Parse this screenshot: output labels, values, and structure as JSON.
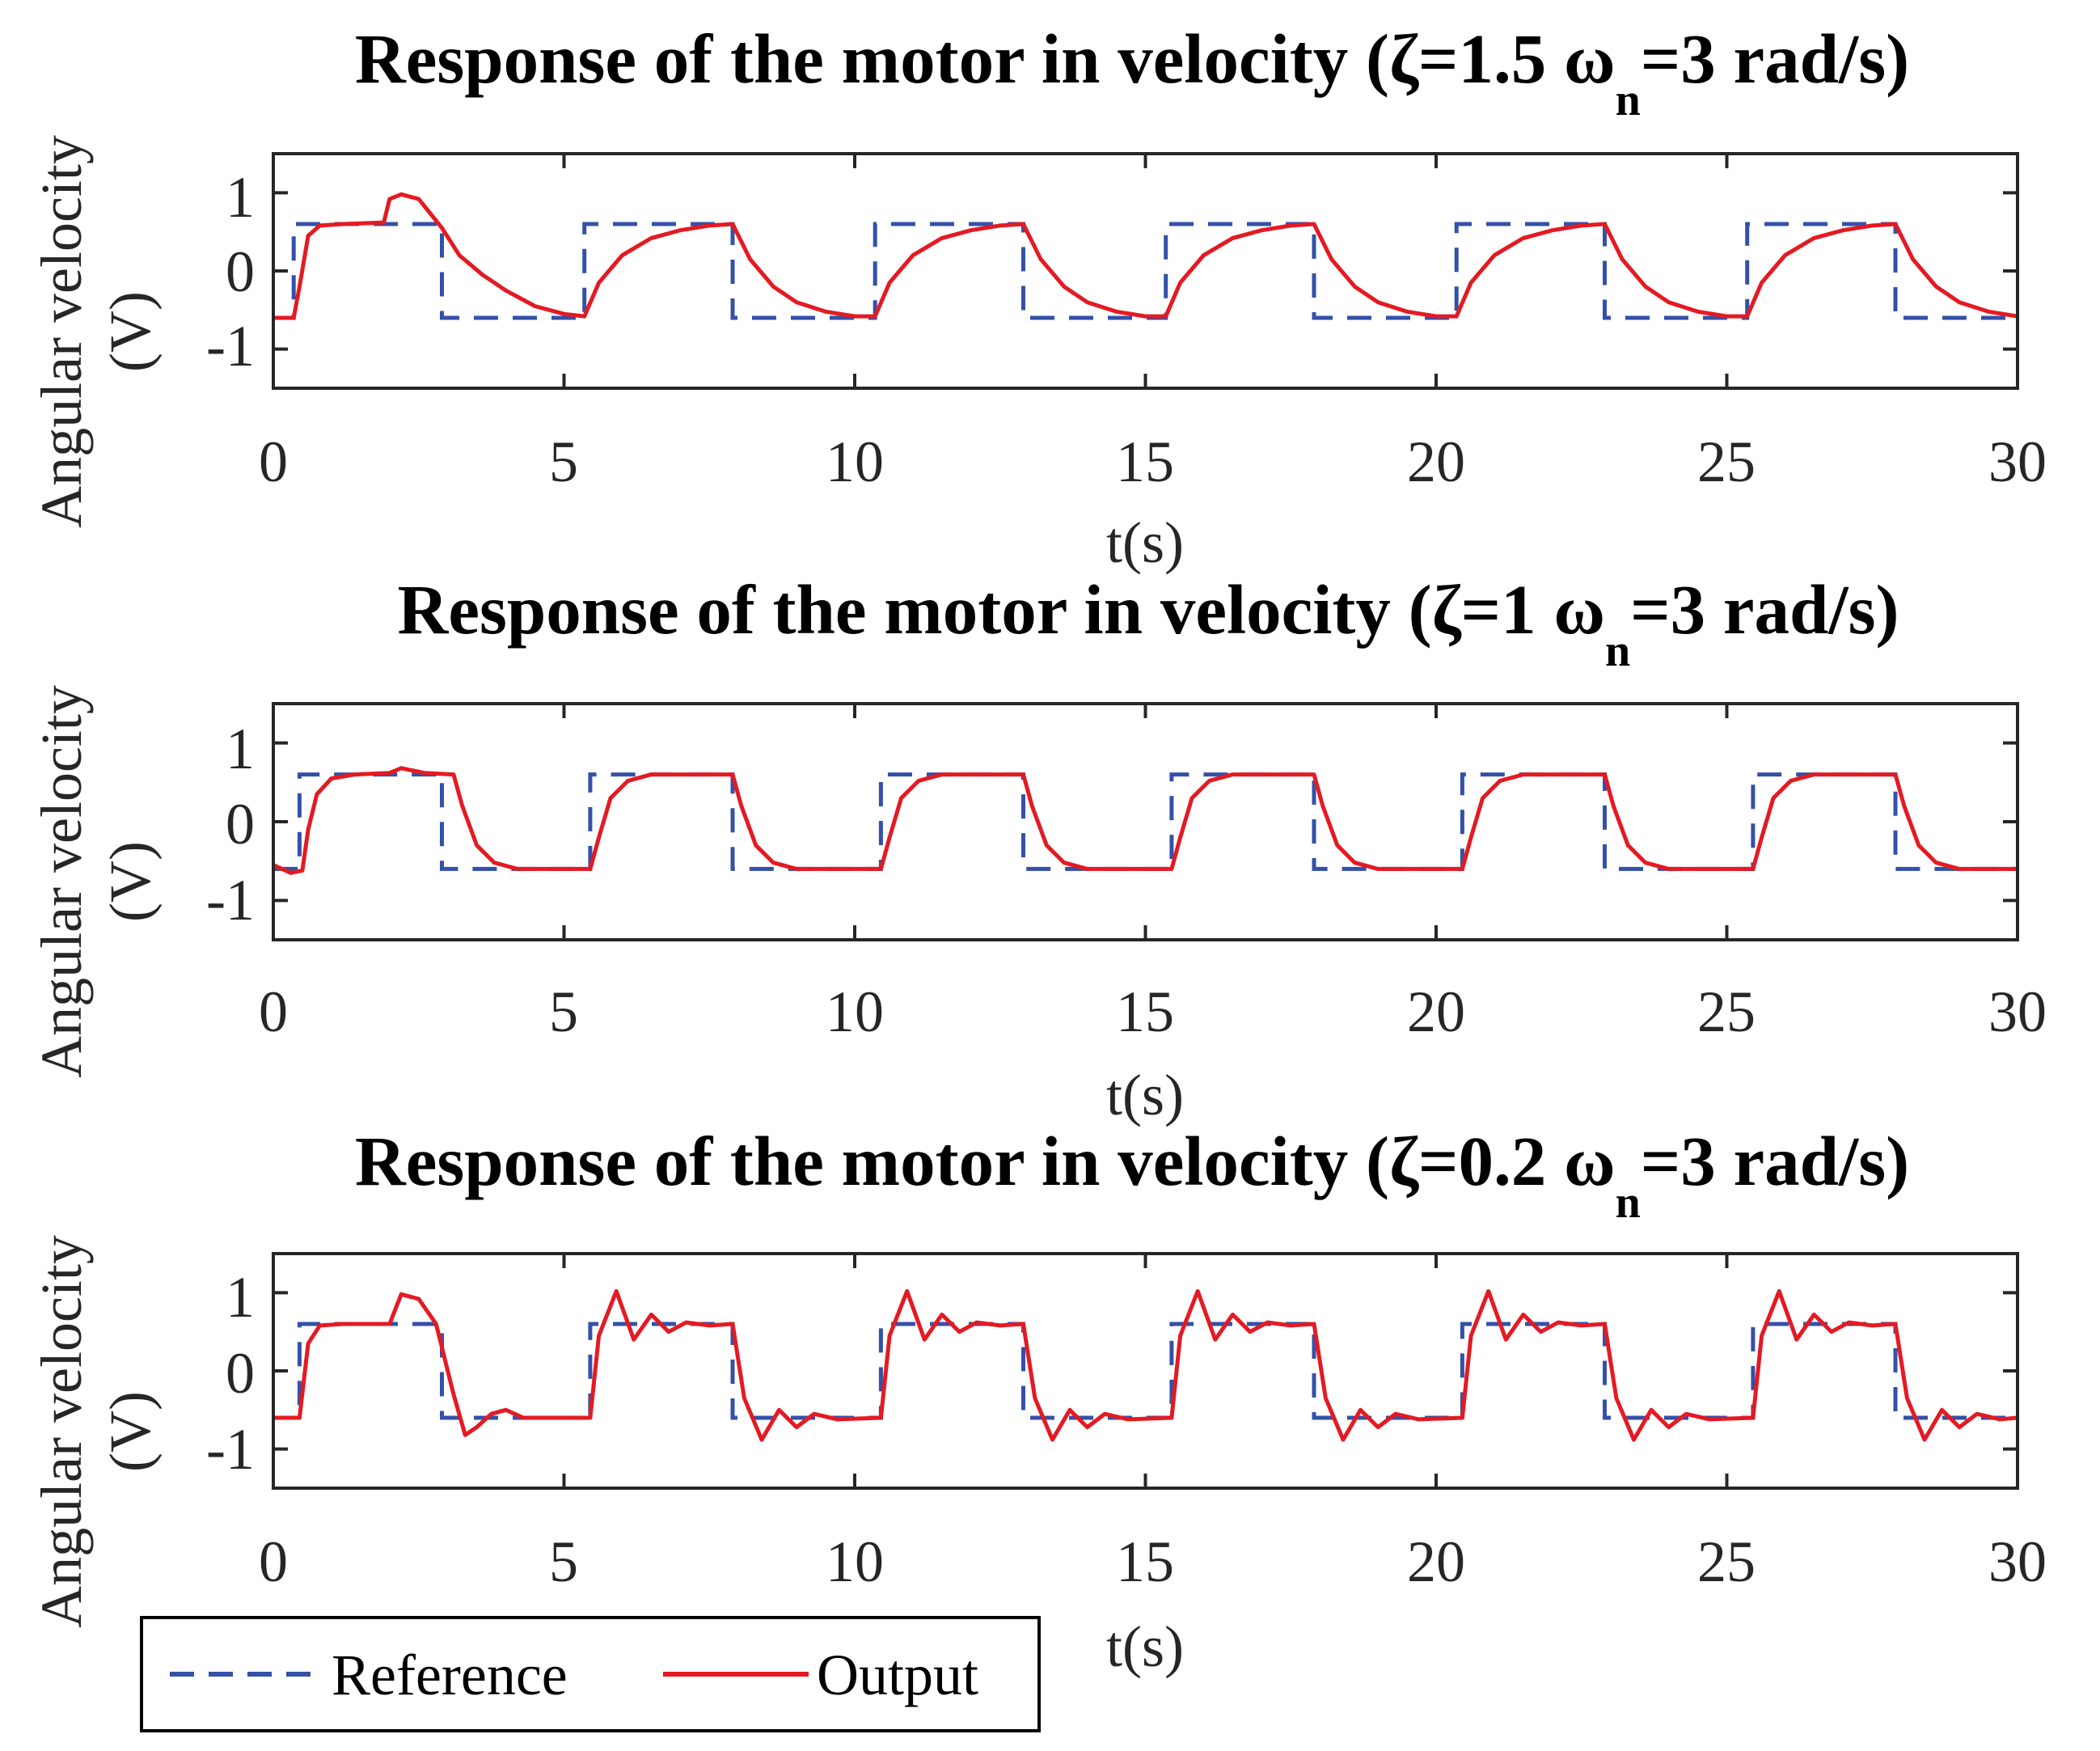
{
  "chart_data": [
    {
      "type": "line",
      "title": "Response of the motor in velocity (ζ=1.5 ωn=3 rad/s)",
      "title_parts": {
        "main": "Response of the motor in velocity (ζ=1.5 ω",
        "sub": "n",
        "tail": "=3 rad/s)"
      },
      "zeta": 1.5,
      "omega_n": 3,
      "xlabel": "t(s)",
      "ylabel": "Angular velocity (V)",
      "ylabel_lines": [
        "Angular velocity",
        "(V)"
      ],
      "xlim": [
        0,
        30
      ],
      "ylim": [
        -1.5,
        1.5
      ],
      "xticks": [
        0,
        5,
        10,
        15,
        20,
        25,
        30
      ],
      "yticks": [
        -1,
        0,
        1
      ],
      "ytick_labels": [
        "-1",
        "0",
        "1"
      ],
      "series": [
        {
          "name": "Reference",
          "style": "dashed",
          "color": "#3451a8",
          "x": [
            0,
            0.35,
            0.35,
            2.9,
            2.9,
            5.35,
            5.35,
            7.9,
            7.9,
            10.35,
            10.35,
            12.9,
            12.9,
            15.35,
            15.35,
            17.9,
            17.9,
            20.35,
            20.35,
            22.9,
            22.9,
            25.35,
            25.35,
            27.9,
            27.9,
            30
          ],
          "y": [
            -0.6,
            -0.6,
            0.6,
            0.6,
            -0.6,
            -0.6,
            0.6,
            0.6,
            -0.6,
            -0.6,
            0.6,
            0.6,
            -0.6,
            -0.6,
            0.6,
            0.6,
            -0.6,
            -0.6,
            0.6,
            0.6,
            -0.6,
            -0.6,
            0.6,
            0.6,
            -0.6,
            -0.6
          ]
        },
        {
          "name": "Output",
          "style": "solid",
          "color": "#e41a23",
          "x": [
            0,
            0.35,
            0.45,
            0.6,
            0.8,
            1.2,
            1.9,
            2.0,
            2.2,
            2.5,
            2.9,
            3.2,
            3.6,
            4.0,
            4.5,
            5.0,
            5.35,
            5.6,
            6.0,
            6.5,
            7.0,
            7.5,
            7.9,
            8.2,
            8.6,
            9.0,
            9.5,
            10.0,
            10.35,
            10.6,
            11.0,
            11.5,
            12.0,
            12.5,
            12.9,
            13.2,
            13.6,
            14.0,
            14.5,
            15.0,
            15.35,
            15.6,
            16.0,
            16.5,
            17.0,
            17.5,
            17.9,
            18.2,
            18.6,
            19.0,
            19.5,
            20.0,
            20.35,
            20.6,
            21.0,
            21.5,
            22.0,
            22.5,
            22.9,
            23.2,
            23.6,
            24.0,
            24.5,
            25.0,
            25.35,
            25.6,
            26.0,
            26.5,
            27.0,
            27.5,
            27.9,
            28.2,
            28.6,
            29.0,
            29.5,
            30.0
          ],
          "y": [
            -0.6,
            -0.6,
            -0.2,
            0.45,
            0.58,
            0.6,
            0.62,
            0.92,
            0.98,
            0.92,
            0.55,
            0.2,
            -0.05,
            -0.25,
            -0.45,
            -0.55,
            -0.58,
            -0.15,
            0.2,
            0.42,
            0.52,
            0.58,
            0.6,
            0.15,
            -0.2,
            -0.4,
            -0.52,
            -0.58,
            -0.58,
            -0.15,
            0.2,
            0.42,
            0.52,
            0.58,
            0.6,
            0.15,
            -0.2,
            -0.4,
            -0.52,
            -0.58,
            -0.58,
            -0.15,
            0.2,
            0.42,
            0.52,
            0.58,
            0.6,
            0.15,
            -0.2,
            -0.4,
            -0.52,
            -0.58,
            -0.58,
            -0.15,
            0.2,
            0.42,
            0.52,
            0.58,
            0.6,
            0.15,
            -0.2,
            -0.4,
            -0.52,
            -0.58,
            -0.58,
            -0.15,
            0.2,
            0.42,
            0.52,
            0.58,
            0.6,
            0.15,
            -0.2,
            -0.4,
            -0.52,
            -0.58
          ]
        }
      ]
    },
    {
      "type": "line",
      "title": "Response of the motor in velocity (ζ=1 ωn=3 rad/s)",
      "title_parts": {
        "main": "Response of the motor in velocity (ζ=1 ω",
        "sub": "n",
        "tail": "=3 rad/s)"
      },
      "zeta": 1,
      "omega_n": 3,
      "xlabel": "t(s)",
      "ylabel": "Angular velocity (V)",
      "ylabel_lines": [
        "Angular velocity",
        "(V)"
      ],
      "xlim": [
        0,
        30
      ],
      "ylim": [
        -1.5,
        1.5
      ],
      "xticks": [
        0,
        5,
        10,
        15,
        20,
        25,
        30
      ],
      "yticks": [
        -1,
        0,
        1
      ],
      "ytick_labels": [
        "-1",
        "0",
        "1"
      ],
      "series": [
        {
          "name": "Reference",
          "style": "dashed",
          "color": "#3451a8",
          "x": [
            0,
            0.45,
            0.45,
            2.9,
            2.9,
            5.45,
            5.45,
            7.9,
            7.9,
            10.45,
            10.45,
            12.9,
            12.9,
            15.45,
            15.45,
            17.9,
            17.9,
            20.45,
            20.45,
            22.9,
            22.9,
            25.45,
            25.45,
            27.9,
            27.9,
            30
          ],
          "y": [
            -0.6,
            -0.6,
            0.6,
            0.6,
            -0.6,
            -0.6,
            0.6,
            0.6,
            -0.6,
            -0.6,
            0.6,
            0.6,
            -0.6,
            -0.6,
            0.6,
            0.6,
            -0.6,
            -0.6,
            0.6,
            0.6,
            -0.6,
            -0.6,
            0.6,
            0.6,
            -0.6,
            -0.6
          ]
        },
        {
          "name": "Output",
          "style": "solid",
          "color": "#e41a23",
          "x": [
            0,
            0.3,
            0.5,
            0.6,
            0.75,
            1.0,
            1.4,
            2.0,
            2.2,
            2.6,
            3.1,
            3.25,
            3.5,
            3.8,
            4.2,
            5.0,
            5.45,
            5.6,
            5.8,
            6.1,
            6.5,
            7.9,
            8.05,
            8.3,
            8.6,
            9.0,
            10.45,
            10.6,
            10.8,
            11.1,
            11.5,
            12.9,
            13.05,
            13.3,
            13.6,
            14.0,
            15.45,
            15.6,
            15.8,
            16.1,
            16.5,
            17.9,
            18.05,
            18.3,
            18.6,
            19.0,
            20.45,
            20.6,
            20.8,
            21.1,
            21.5,
            22.9,
            23.05,
            23.3,
            23.6,
            24.0,
            25.45,
            25.6,
            25.8,
            26.1,
            26.5,
            27.9,
            28.05,
            28.3,
            28.6,
            29.0,
            30.0
          ],
          "y": [
            -0.55,
            -0.65,
            -0.62,
            -0.1,
            0.35,
            0.55,
            0.6,
            0.62,
            0.68,
            0.62,
            0.6,
            0.2,
            -0.3,
            -0.52,
            -0.6,
            -0.6,
            -0.6,
            -0.2,
            0.3,
            0.52,
            0.6,
            0.6,
            0.2,
            -0.3,
            -0.52,
            -0.6,
            -0.6,
            -0.2,
            0.3,
            0.52,
            0.6,
            0.6,
            0.2,
            -0.3,
            -0.52,
            -0.6,
            -0.6,
            -0.2,
            0.3,
            0.52,
            0.6,
            0.6,
            0.2,
            -0.3,
            -0.52,
            -0.6,
            -0.6,
            -0.2,
            0.3,
            0.52,
            0.6,
            0.6,
            0.2,
            -0.3,
            -0.52,
            -0.6,
            -0.6,
            -0.2,
            0.3,
            0.52,
            0.6,
            0.6,
            0.2,
            -0.3,
            -0.52,
            -0.6,
            -0.6
          ]
        }
      ]
    },
    {
      "type": "line",
      "title": "Response of the motor in velocity (ζ=0.2 ωn=3 rad/s)",
      "title_parts": {
        "main": "Response of the motor in velocity (ζ=0.2 ω",
        "sub": "n",
        "tail": "=3 rad/s)"
      },
      "zeta": 0.2,
      "omega_n": 3,
      "xlabel": "t(s)",
      "ylabel": "Angular velocity (V)",
      "ylabel_lines": [
        "Angular velocity",
        "(V)"
      ],
      "xlim": [
        0,
        30
      ],
      "ylim": [
        -1.5,
        1.5
      ],
      "xticks": [
        0,
        5,
        10,
        15,
        20,
        25,
        30
      ],
      "yticks": [
        -1,
        0,
        1
      ],
      "ytick_labels": [
        "-1",
        "0",
        "1"
      ],
      "series": [
        {
          "name": "Reference",
          "style": "dashed",
          "color": "#3451a8",
          "x": [
            0,
            0.45,
            0.45,
            2.9,
            2.9,
            5.45,
            5.45,
            7.9,
            7.9,
            10.45,
            10.45,
            12.9,
            12.9,
            15.45,
            15.45,
            17.9,
            17.9,
            20.45,
            20.45,
            22.9,
            22.9,
            25.45,
            25.45,
            27.9,
            27.9,
            30
          ],
          "y": [
            -0.6,
            -0.6,
            0.6,
            0.6,
            -0.6,
            -0.6,
            0.6,
            0.6,
            -0.6,
            -0.6,
            0.6,
            0.6,
            -0.6,
            -0.6,
            0.6,
            0.6,
            -0.6,
            -0.6,
            0.6,
            0.6,
            -0.6,
            -0.6,
            0.6,
            0.6,
            -0.6,
            -0.6
          ]
        },
        {
          "name": "Output",
          "style": "solid",
          "color": "#e41a23",
          "x": [
            0,
            0.45,
            0.6,
            0.8,
            1.2,
            2.0,
            2.2,
            2.5,
            2.8,
            3.1,
            3.3,
            3.5,
            3.75,
            4.0,
            4.3,
            4.6,
            5.45,
            5.6,
            5.9,
            6.2,
            6.5,
            6.8,
            7.1,
            7.5,
            7.9,
            8.1,
            8.4,
            8.7,
            9.0,
            9.3,
            9.7,
            10.45,
            10.6,
            10.9,
            11.2,
            11.5,
            11.8,
            12.1,
            12.5,
            12.9,
            13.1,
            13.4,
            13.7,
            14.0,
            14.3,
            14.7,
            15.45,
            15.6,
            15.9,
            16.2,
            16.5,
            16.8,
            17.1,
            17.5,
            17.9,
            18.1,
            18.4,
            18.7,
            19.0,
            19.3,
            19.7,
            20.45,
            20.6,
            20.9,
            21.2,
            21.5,
            21.8,
            22.1,
            22.5,
            22.9,
            23.1,
            23.4,
            23.7,
            24.0,
            24.3,
            24.7,
            25.45,
            25.6,
            25.9,
            26.2,
            26.5,
            26.8,
            27.1,
            27.5,
            27.9,
            28.1,
            28.4,
            28.7,
            29.0,
            29.3,
            29.7,
            30.0
          ],
          "y": [
            -0.6,
            -0.6,
            0.35,
            0.58,
            0.6,
            0.6,
            0.98,
            0.92,
            0.6,
            -0.3,
            -0.82,
            -0.72,
            -0.55,
            -0.5,
            -0.6,
            -0.6,
            -0.6,
            0.45,
            1.02,
            0.4,
            0.72,
            0.5,
            0.62,
            0.58,
            0.6,
            -0.35,
            -0.88,
            -0.5,
            -0.72,
            -0.55,
            -0.62,
            -0.6,
            0.45,
            1.02,
            0.4,
            0.72,
            0.5,
            0.62,
            0.58,
            0.6,
            -0.35,
            -0.88,
            -0.5,
            -0.72,
            -0.55,
            -0.62,
            -0.6,
            0.45,
            1.02,
            0.4,
            0.72,
            0.5,
            0.62,
            0.58,
            0.6,
            -0.35,
            -0.88,
            -0.5,
            -0.72,
            -0.55,
            -0.62,
            -0.6,
            0.45,
            1.02,
            0.4,
            0.72,
            0.5,
            0.62,
            0.58,
            0.6,
            -0.35,
            -0.88,
            -0.5,
            -0.72,
            -0.55,
            -0.62,
            -0.6,
            0.45,
            1.02,
            0.4,
            0.72,
            0.5,
            0.62,
            0.58,
            0.6,
            -0.35,
            -0.88,
            -0.5,
            -0.72,
            -0.55,
            -0.62,
            -0.6
          ]
        }
      ]
    }
  ],
  "legend": {
    "placement": "bottom-left",
    "entries": [
      {
        "label": "Reference",
        "style": "dashed",
        "color": "#3451a8"
      },
      {
        "label": "Output",
        "style": "solid",
        "color": "#e41a23"
      }
    ]
  }
}
